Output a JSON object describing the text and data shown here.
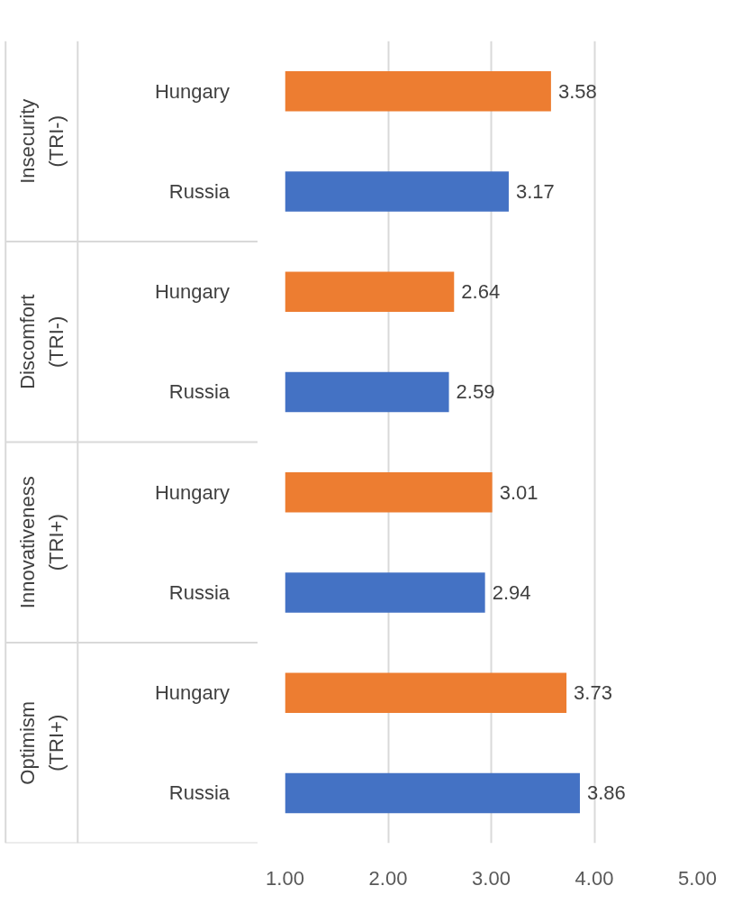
{
  "chart_data": {
    "type": "bar",
    "orientation": "horizontal",
    "categories": [
      "Hungary",
      "Russia",
      "Hungary",
      "Russia",
      "Hungary",
      "Russia",
      "Hungary",
      "Russia"
    ],
    "values": [
      3.58,
      3.17,
      2.64,
      2.59,
      3.01,
      2.94,
      3.73,
      3.86
    ],
    "colors": [
      "#ed7d31",
      "#4472c4",
      "#ed7d31",
      "#4472c4",
      "#ed7d31",
      "#4472c4",
      "#ed7d31",
      "#4472c4"
    ],
    "annotations": [
      "Insecurity (TRI-)",
      "Discomfort (TRI-)",
      "Innovativeness (TRI+)",
      "Optimism (TRI+)"
    ],
    "xlim": [
      1,
      5
    ],
    "xticks": [
      {
        "value": 1,
        "label": "1.00"
      },
      {
        "value": 2,
        "label": "2.00"
      },
      {
        "value": 3,
        "label": "3.00"
      },
      {
        "value": 4,
        "label": "4.00"
      },
      {
        "value": 5,
        "label": "5.00"
      }
    ],
    "grid": "x",
    "data_labels": true
  }
}
